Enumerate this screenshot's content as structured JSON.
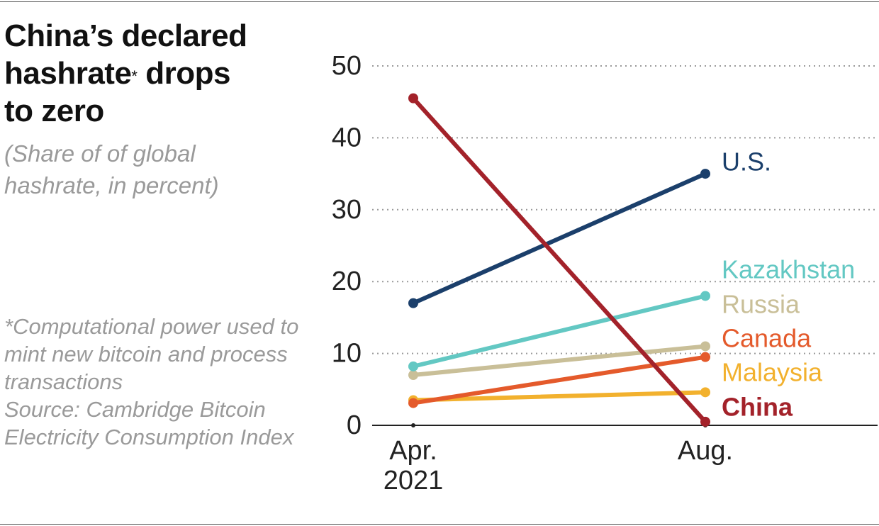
{
  "title": {
    "line1": "China’s declared",
    "line2_pre": "hashrate",
    "line2_mark": "*",
    "line2_post": " drops",
    "line3": "to zero"
  },
  "subtitle": "(Share of of global hashrate, in percent)",
  "footnote": "*Computational power used to mint new bitcoin and process transactions",
  "source": "Source: Cambridge Bitcoin Electricity Consumption Index",
  "chart_data": {
    "type": "line",
    "title": "China’s declared hashrate* drops to zero",
    "subtitle": "(Share of of global hashrate, in percent)",
    "xlabel": "",
    "ylabel": "",
    "x": [
      "Apr.\n2021",
      "Aug."
    ],
    "x_tick_lines": [
      [
        "Apr.",
        "2021"
      ],
      [
        "Aug."
      ]
    ],
    "ylim": [
      0,
      50
    ],
    "yticks": [
      0,
      10,
      20,
      30,
      40,
      50
    ],
    "grid": "horizontal dotted",
    "series": [
      {
        "name": "U.S.",
        "color": "#1b3f6b",
        "bold": false,
        "values": [
          17.0,
          35.0
        ]
      },
      {
        "name": "Kazakhstan",
        "color": "#63c8c3",
        "bold": false,
        "values": [
          8.2,
          18.0
        ]
      },
      {
        "name": "Russia",
        "color": "#c9bf98",
        "bold": false,
        "values": [
          7.0,
          11.0
        ]
      },
      {
        "name": "Canada",
        "color": "#e45a2b",
        "bold": false,
        "values": [
          3.1,
          9.5
        ]
      },
      {
        "name": "Malaysia",
        "color": "#f2b12e",
        "bold": false,
        "values": [
          3.5,
          4.6
        ]
      },
      {
        "name": "China",
        "color": "#a3222a",
        "bold": true,
        "values": [
          45.5,
          0.5
        ]
      }
    ]
  }
}
